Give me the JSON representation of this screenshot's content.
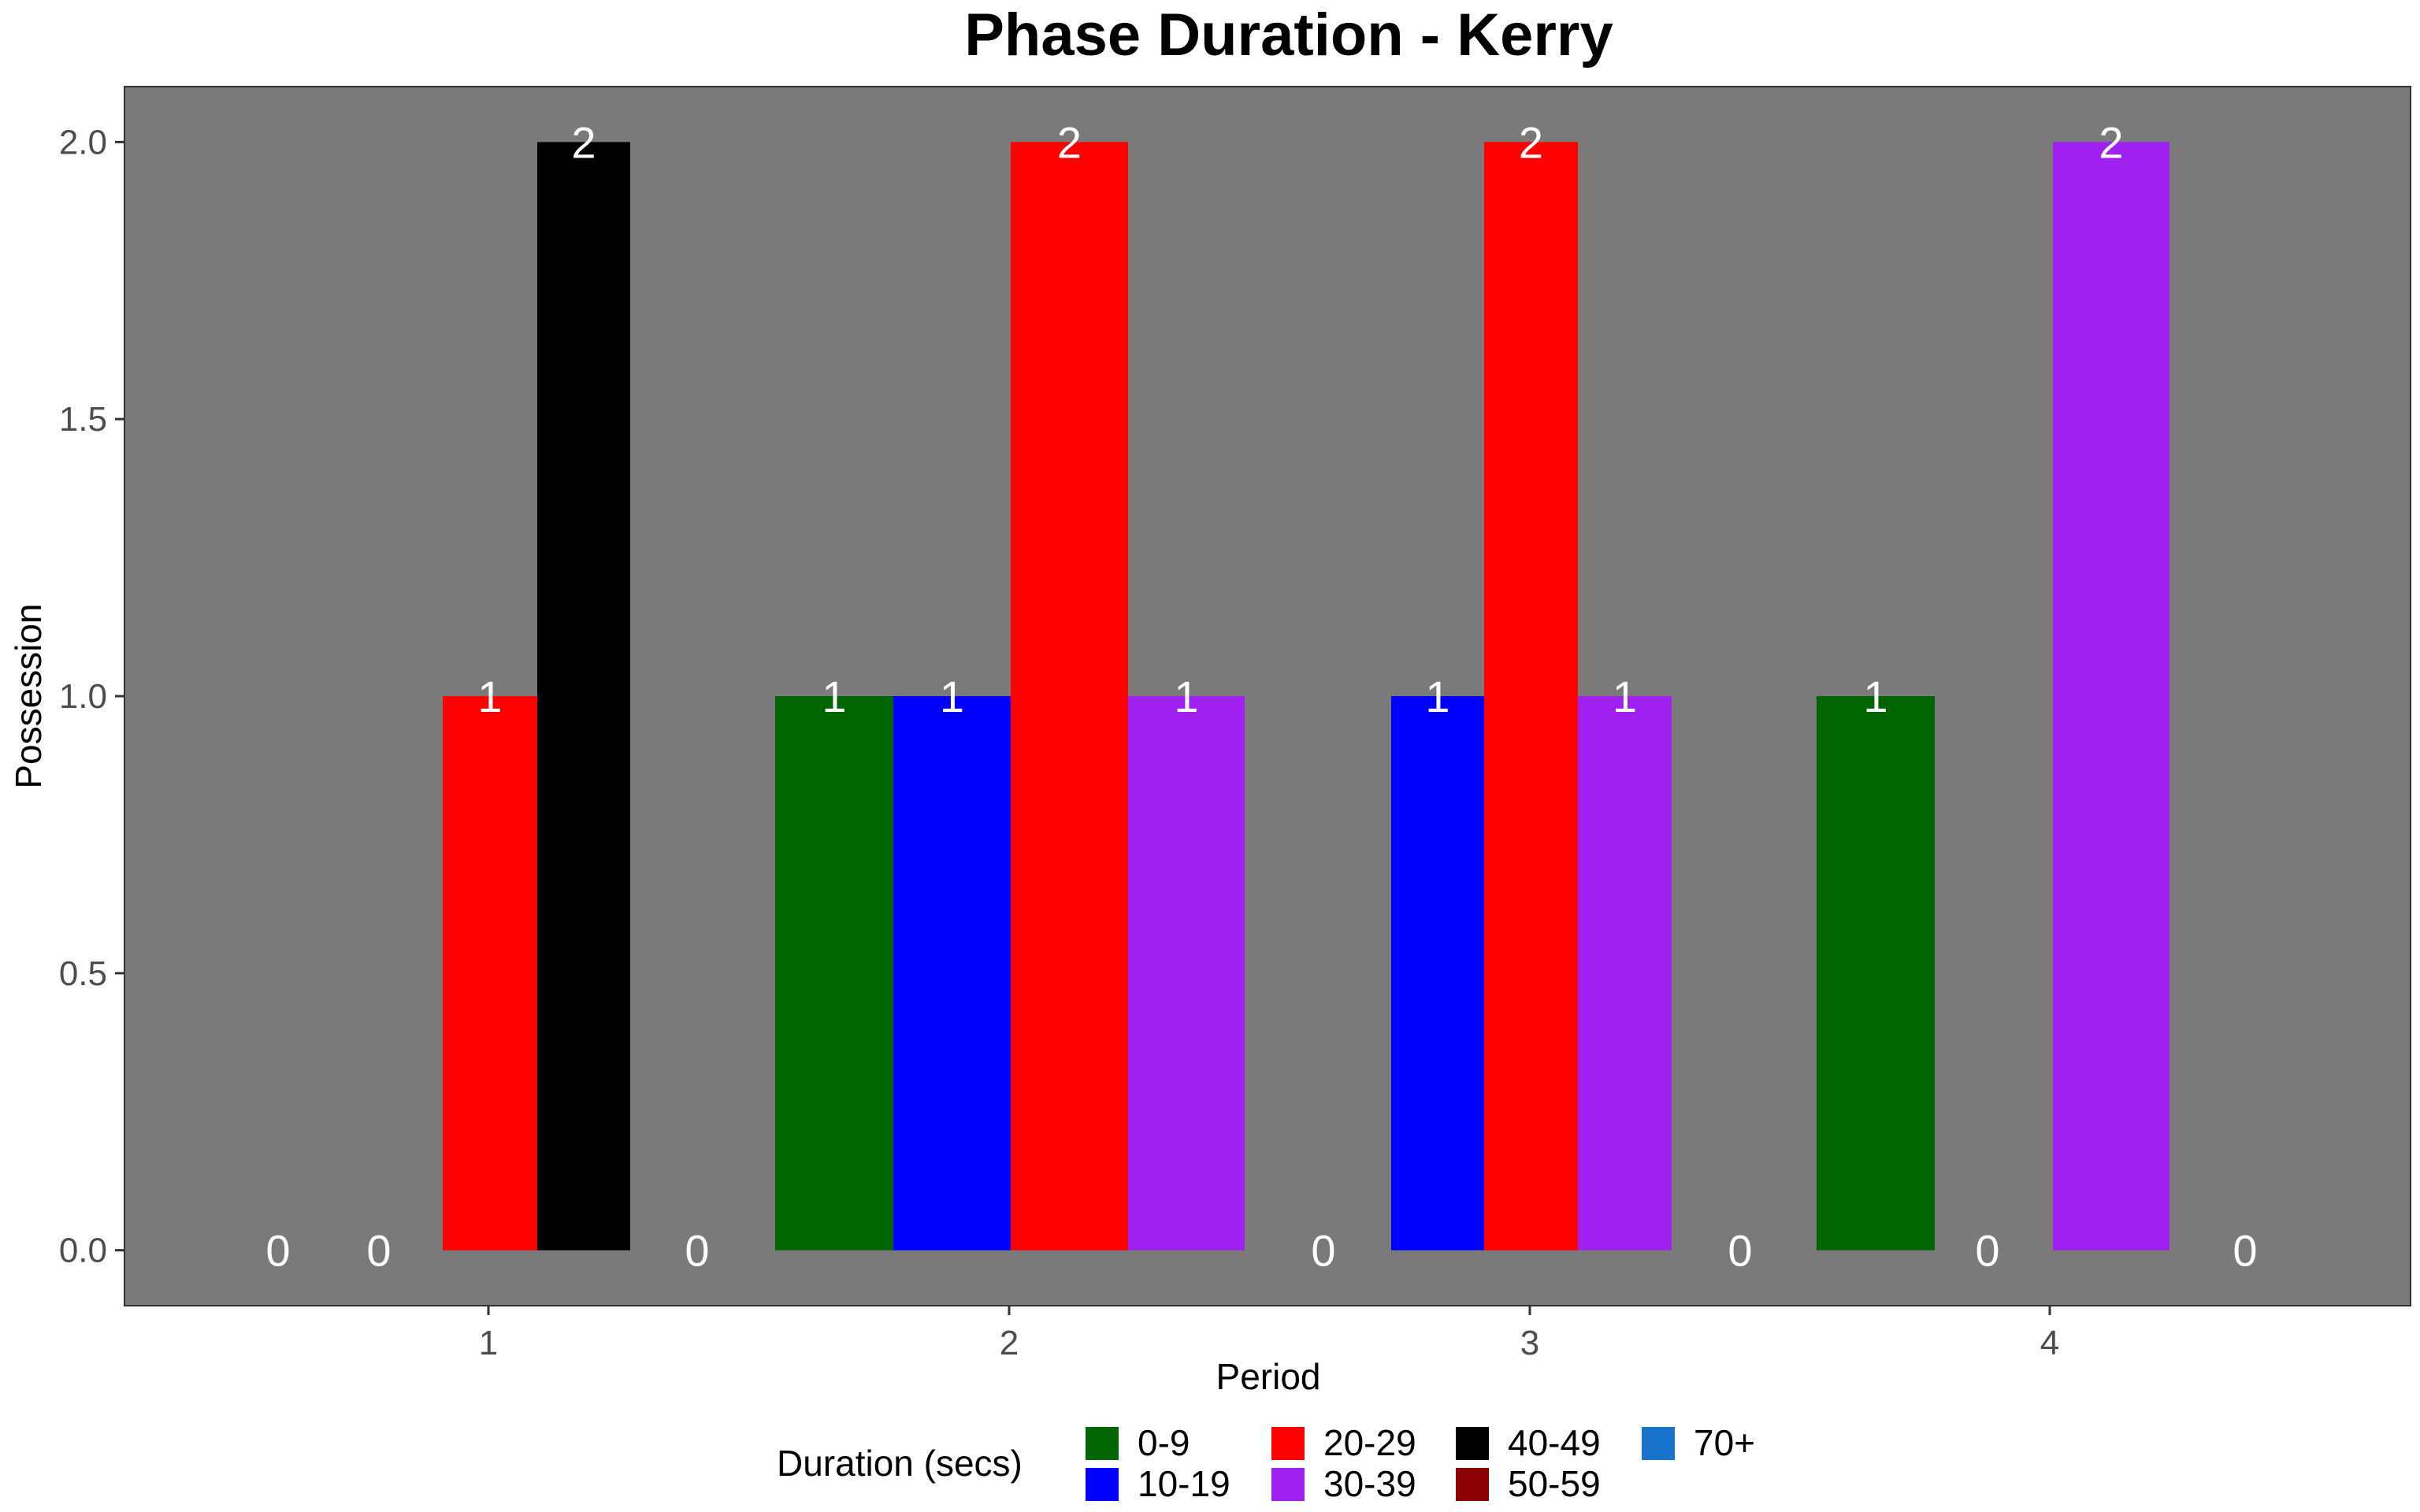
{
  "chart_data": {
    "type": "bar",
    "title": "Phase Duration - Kerry",
    "xlabel": "Period",
    "ylabel": "Possession",
    "categories": [
      "1",
      "2",
      "3",
      "4"
    ],
    "ylim": [
      -0.1,
      2.1
    ],
    "y_ticks": [
      "0.0",
      "0.5",
      "1.0",
      "1.5",
      "2.0"
    ],
    "grid": false,
    "legend": {
      "title": "Duration (secs)",
      "position": "bottom",
      "entries": [
        {
          "label": "0-9",
          "color": "#006400"
        },
        {
          "label": "10-19",
          "color": "#0000ff"
        },
        {
          "label": "20-29",
          "color": "#ff0000"
        },
        {
          "label": "30-39",
          "color": "#a020f0"
        },
        {
          "label": "40-49",
          "color": "#000000"
        },
        {
          "label": "50-59",
          "color": "#8b0000"
        },
        {
          "label": "70+",
          "color": "#1874cd"
        }
      ]
    },
    "panel_background": "#7a7a7a",
    "groups": [
      {
        "period": "1",
        "bars": [
          {
            "duration": null,
            "value": 0,
            "label": "0"
          },
          {
            "duration": null,
            "value": 0,
            "label": "0"
          },
          {
            "duration": "20-29",
            "value": 1,
            "label": "1"
          },
          {
            "duration": "40-49",
            "value": 2,
            "label": "2"
          },
          {
            "duration": null,
            "value": 0,
            "label": "0"
          }
        ]
      },
      {
        "period": "2",
        "bars": [
          {
            "duration": "0-9",
            "value": 1,
            "label": "1"
          },
          {
            "duration": "10-19",
            "value": 1,
            "label": "1"
          },
          {
            "duration": "20-29",
            "value": 2,
            "label": "2"
          },
          {
            "duration": "30-39",
            "value": 1,
            "label": "1"
          },
          {
            "duration": null,
            "value": 0,
            "label": "0"
          }
        ]
      },
      {
        "period": "3",
        "bars": [
          {
            "duration": "10-19",
            "value": 1,
            "label": "1"
          },
          {
            "duration": "20-29",
            "value": 2,
            "label": "2"
          },
          {
            "duration": "30-39",
            "value": 1,
            "label": "1"
          },
          {
            "duration": null,
            "value": 0,
            "label": "0"
          }
        ]
      },
      {
        "period": "4",
        "bars": [
          {
            "duration": "0-9",
            "value": 1,
            "label": "1"
          },
          {
            "duration": null,
            "value": 0,
            "label": "0"
          },
          {
            "duration": "30-39",
            "value": 2,
            "label": "2"
          },
          {
            "duration": null,
            "value": 0,
            "label": "0"
          }
        ]
      }
    ]
  }
}
